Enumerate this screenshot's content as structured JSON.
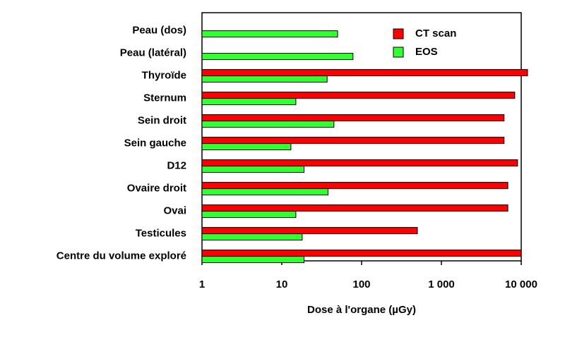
{
  "chart_data": {
    "type": "bar",
    "orientation": "horizontal",
    "xscale": "log",
    "xlabel": "Dose à l'organe (µGy)",
    "categories": [
      "Peau (dos)",
      "Peau (latéral)",
      "Thyroïde",
      "Sternum",
      "Sein droit",
      "Sein gauche",
      "D12",
      "Ovaire droit",
      "Ovai",
      "Testicules",
      "Centre du volume exploré"
    ],
    "series": [
      {
        "name": "CT scan",
        "color": "#ff0000",
        "values": [
          null,
          null,
          12000,
          8300,
          6100,
          6100,
          9000,
          6800,
          6800,
          500,
          10000
        ]
      },
      {
        "name": "EOS",
        "color": "#33ff33",
        "values": [
          50,
          78,
          37,
          15,
          45,
          13,
          19,
          38,
          15,
          18,
          19
        ]
      }
    ],
    "xlim": [
      1,
      10000
    ],
    "xticks": [
      1,
      10,
      100,
      {
        "value": 1000,
        "label": "1 000"
      },
      {
        "value": 10000,
        "label": "10 000"
      }
    ],
    "legend": "upper right"
  }
}
